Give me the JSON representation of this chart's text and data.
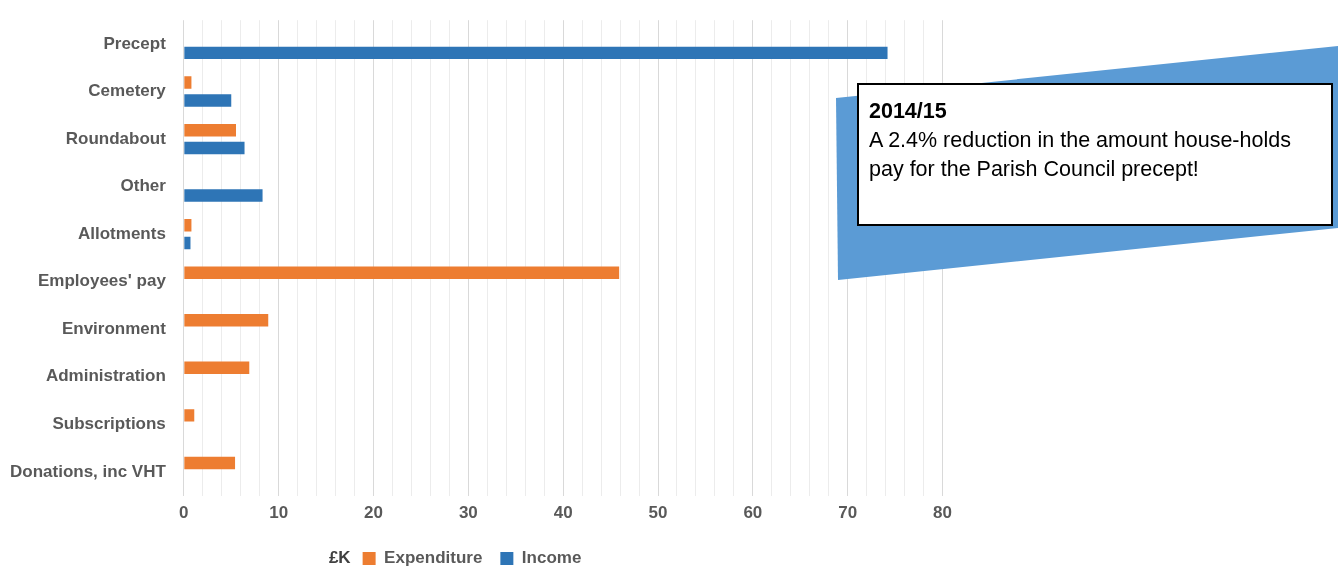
{
  "chart_data": {
    "type": "bar",
    "orientation": "horizontal",
    "categories": [
      "Precept",
      "Cemetery",
      "Roundabout",
      "Other",
      "Allotments",
      "Employees' pay",
      "Environment",
      "Administration",
      "Subscriptions",
      "Donations, inc VHT"
    ],
    "series": [
      {
        "name": "Expenditure",
        "color": "#ed7d31",
        "values": [
          null,
          0.8,
          5.5,
          null,
          0.8,
          45.9,
          8.9,
          6.9,
          1.1,
          5.4
        ]
      },
      {
        "name": "Income",
        "color": "#2e75b6",
        "values": [
          74.2,
          5,
          6.4,
          8.3,
          0.7,
          null,
          null,
          null,
          null,
          null
        ]
      }
    ],
    "xlim": [
      0,
      80
    ],
    "xticks": [
      0,
      {
        "value": 2,
        "label": null
      },
      {
        "value": 4,
        "label": null
      },
      {
        "value": 6,
        "label": null
      },
      {
        "value": 8,
        "label": null
      },
      10,
      {
        "value": 12,
        "label": null
      },
      {
        "value": 14,
        "label": null
      },
      {
        "value": 16,
        "label": null
      },
      {
        "value": 18,
        "label": null
      },
      20,
      {
        "value": 22,
        "label": null
      },
      {
        "value": 24,
        "label": null
      },
      {
        "value": 26,
        "label": null
      },
      {
        "value": 28,
        "label": null
      },
      30,
      {
        "value": 32,
        "label": null
      },
      {
        "value": 34,
        "label": null
      },
      {
        "value": 36,
        "label": null
      },
      {
        "value": 38,
        "label": null
      },
      40,
      {
        "value": 42,
        "label": null
      },
      {
        "value": 44,
        "label": null
      },
      {
        "value": 46,
        "label": null
      },
      {
        "value": 48,
        "label": null
      },
      50,
      {
        "value": 52,
        "label": null
      },
      {
        "value": 54,
        "label": null
      },
      {
        "value": 56,
        "label": null
      },
      {
        "value": 58,
        "label": null
      },
      60,
      {
        "value": 62,
        "label": null
      },
      {
        "value": 64,
        "label": null
      },
      {
        "value": 66,
        "label": null
      },
      {
        "value": 68,
        "label": null
      },
      70,
      {
        "value": 72,
        "label": null
      },
      {
        "value": 74,
        "label": null
      },
      {
        "value": 76,
        "label": null
      },
      {
        "value": 78,
        "label": null
      },
      80
    ],
    "grid": "x",
    "legend": "bottom",
    "legend_title": "£K",
    "annotations": [
      "2014/15",
      "A 2.4% reduction in the amount house-holds pay for the Parish Council precept!"
    ]
  }
}
